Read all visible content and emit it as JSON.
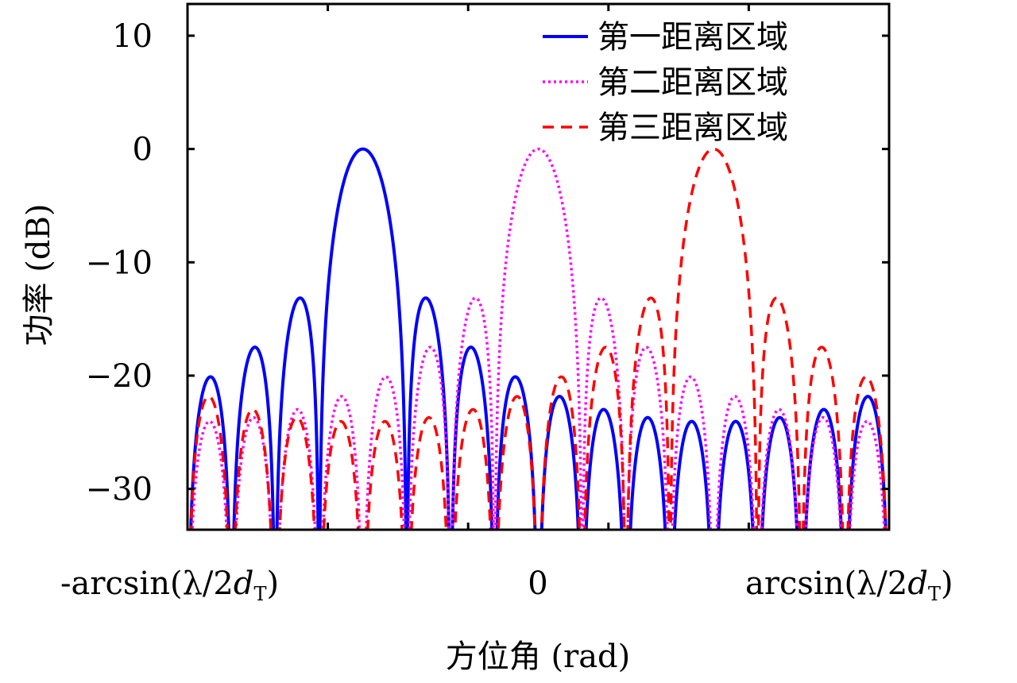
{
  "chart_data": {
    "type": "line",
    "title": "",
    "xlabel": "方位角 (rad)",
    "ylabel": "功率 (dB)",
    "xlim": [
      -1,
      1
    ],
    "ylim": [
      -33.6,
      12.8
    ],
    "x_unit_note": "normalized azimuth, -1 = -arcsin(λ/2d_T), 1 = arcsin(λ/2d_T)",
    "yticks": [
      10,
      0,
      -10,
      -20,
      -30
    ],
    "ytick_labels": [
      "10",
      "0",
      "−10",
      "−20",
      "−30"
    ],
    "xtick_values": [
      -0.6,
      -0.2,
      0.2,
      0.6
    ],
    "xtick_annotations": [
      {
        "x": -1,
        "text": "-arcsin(λ/2",
        "sym": "d",
        "sub": "T",
        "close": ")"
      },
      {
        "x": 0,
        "text": "0"
      },
      {
        "x": 1,
        "text": "arcsin(λ/2",
        "sym": "d",
        "sub": "T",
        "close": ")"
      }
    ],
    "grid": false,
    "legend_position": "top-right",
    "series": [
      {
        "name": "第一距离区域",
        "color": "#0000ff",
        "style": "solid",
        "peak_x": -0.5,
        "peak_db": 0,
        "elements": 16,
        "sidelobes_db": [
          -13.3,
          -17.8,
          -20.8,
          -22.5
        ]
      },
      {
        "name": "第二距离区域",
        "color": "#ff00ff",
        "style": "dotted",
        "peak_x": 0.0,
        "peak_db": 0,
        "elements": 16,
        "sidelobes_db": [
          -13.3,
          -17.8,
          -20.8,
          -22.5
        ]
      },
      {
        "name": "第三距离区域",
        "color": "#ff0000",
        "style": "dashed",
        "peak_x": 0.5,
        "peak_db": 0,
        "elements": 16,
        "sidelobes_db": [
          -13.3,
          -17.8,
          -20.8,
          -22.5
        ]
      }
    ]
  }
}
